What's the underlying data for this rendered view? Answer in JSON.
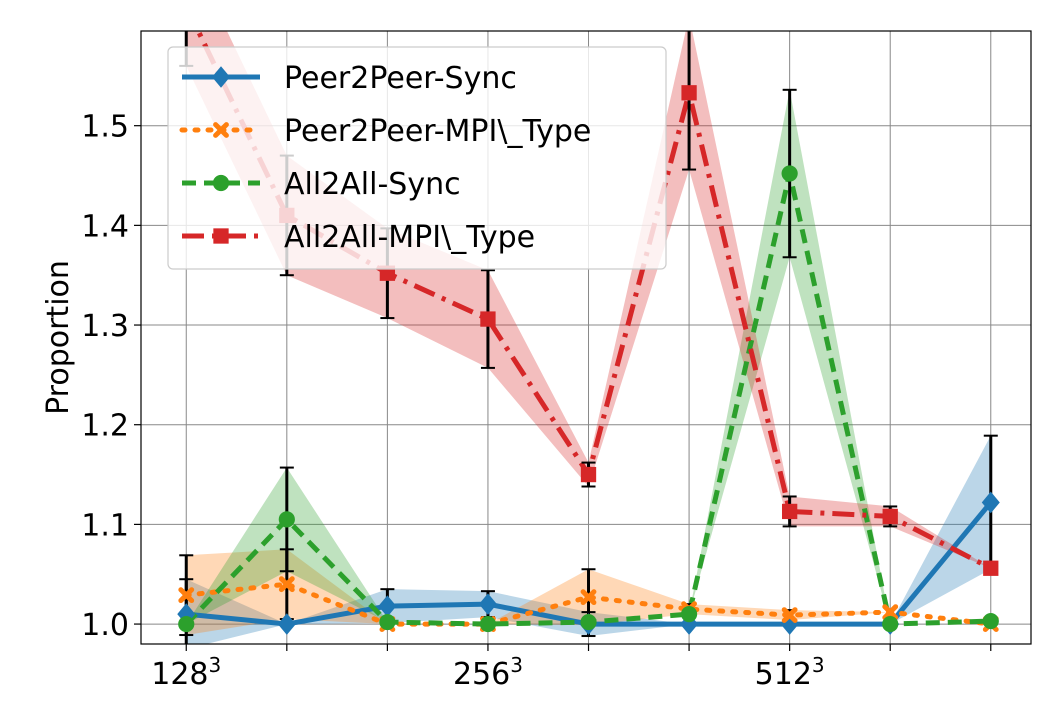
{
  "chart_data": {
    "type": "line",
    "ylabel": "Proportion",
    "xlabel": "",
    "ylim": [
      0.98,
      1.595
    ],
    "xlim": [
      -0.45,
      8.4
    ],
    "grid": true,
    "legend_placement": "top-left",
    "x_ticks": [
      {
        "x": 0,
        "base": "128",
        "exp": "3"
      },
      {
        "x": 3,
        "base": "256",
        "exp": "3"
      },
      {
        "x": 6,
        "base": "512",
        "exp": "3"
      }
    ],
    "y_ticks": [
      {
        "value": 1.0,
        "label": "1.0"
      },
      {
        "value": 1.1,
        "label": "1.1"
      },
      {
        "value": 1.2,
        "label": "1.2"
      },
      {
        "value": 1.3,
        "label": "1.3"
      },
      {
        "value": 1.4,
        "label": "1.4"
      },
      {
        "value": 1.5,
        "label": "1.5"
      }
    ],
    "series": [
      {
        "name": "Peer2Peer-Sync",
        "label": "Peer2Peer-Sync",
        "color": "#1f77b4",
        "dash": "solid",
        "marker": "diamond",
        "x": [
          0,
          1,
          2,
          3,
          4,
          5,
          6,
          7,
          8
        ],
        "values": [
          1.01,
          1.0,
          1.018,
          1.02,
          1.0,
          1.0,
          1.0,
          1.0,
          1.122
        ],
        "err": [
          0.035,
          0.0,
          0.017,
          0.013,
          0.012,
          0.0,
          0.0,
          0.0,
          0.067
        ]
      },
      {
        "name": "Peer2Peer-MPI\\_Type",
        "label": "Peer2Peer-MPI\\_Type",
        "color": "#ff7f0e",
        "dash": "dotted",
        "marker": "x",
        "x": [
          0,
          1,
          2,
          3,
          4,
          5,
          6,
          7,
          8
        ],
        "values": [
          1.029,
          1.04,
          1.0,
          1.0,
          1.027,
          1.015,
          1.009,
          1.012,
          1.0
        ],
        "err": [
          0.04,
          0.035,
          0.0,
          0.0,
          0.028,
          0.005,
          0.005,
          0.0,
          0.0
        ]
      },
      {
        "name": "All2All-Sync",
        "label": "All2All-Sync",
        "color": "#2ca02c",
        "dash": "dashed",
        "marker": "circle",
        "x": [
          0,
          1,
          2,
          3,
          4,
          5,
          6,
          7,
          8
        ],
        "values": [
          1.0,
          1.105,
          1.002,
          1.0,
          1.002,
          1.01,
          1.452,
          1.0,
          1.003
        ],
        "err": [
          0.0,
          0.052,
          0.0,
          0.0,
          0.0,
          0.0,
          0.084,
          0.0,
          0.0
        ]
      },
      {
        "name": "All2All-MPI\\_Type",
        "label": "All2All-MPI\\_Type",
        "color": "#d62728",
        "dash": "dashdot",
        "marker": "square",
        "x": [
          0,
          1,
          2,
          3,
          4,
          5,
          6,
          7,
          8
        ],
        "values": [
          1.62,
          1.41,
          1.352,
          1.306,
          1.15,
          1.533,
          1.113,
          1.108,
          1.056
        ],
        "err": [
          0.06,
          0.06,
          0.045,
          0.049,
          0.012,
          0.077,
          0.015,
          0.01,
          0.0
        ]
      }
    ]
  }
}
